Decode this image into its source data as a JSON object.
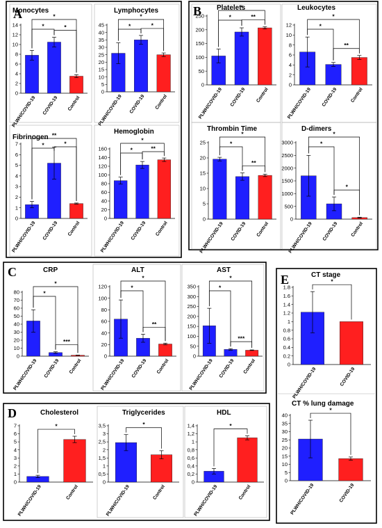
{
  "panels": [
    {
      "letter": "A",
      "rect": [
        9,
        2,
        252,
        368
      ]
    },
    {
      "letter": "B",
      "rect": [
        272,
        2,
        272,
        357
      ]
    },
    {
      "letter": "C",
      "rect": [
        5,
        377,
        378,
        188
      ]
    },
    {
      "letter": "D",
      "rect": [
        5,
        580,
        383,
        168
      ]
    },
    {
      "letter": "E",
      "rect": [
        398,
        386,
        144,
        366
      ]
    }
  ],
  "chart_data": [
    {
      "type": "bar",
      "title": "Monocytes",
      "categories": [
        "PLWH/COVID-19",
        "COVID-19",
        "Control"
      ],
      "values": [
        7.8,
        10.5,
        3.5
      ],
      "errors": [
        1.0,
        1.0,
        0.3
      ],
      "colors": [
        "#1f1fff",
        "#1f1fff",
        "#ff1f1f"
      ],
      "ylim": [
        0,
        14
      ],
      "yticks": [
        "0",
        "2",
        "4",
        "6",
        "8",
        "10",
        "12",
        "14"
      ],
      "sig": [
        {
          "from": 0,
          "to": 1,
          "label": "*"
        },
        {
          "from": 1,
          "to": 2,
          "label": "*"
        },
        {
          "from": 0,
          "to": 2,
          "label": "*"
        }
      ]
    },
    {
      "type": "bar",
      "title": "Lymphocytes",
      "categories": [
        "PLWH/COVID-19",
        "COVID-19",
        "Control"
      ],
      "values": [
        26,
        35,
        25
      ],
      "errors": [
        7,
        3,
        1.2
      ],
      "colors": [
        "#1f1fff",
        "#1f1fff",
        "#ff1f1f"
      ],
      "ylim": [
        0,
        45
      ],
      "yticks": [
        "0",
        "5",
        "10",
        "15",
        "20",
        "25",
        "30",
        "35",
        "40",
        "45"
      ],
      "sig": [
        {
          "from": 0,
          "to": 1,
          "label": "*"
        },
        {
          "from": 1,
          "to": 2,
          "label": "*"
        },
        {
          "from": 0,
          "to": 2,
          "label": "*"
        }
      ]
    },
    {
      "type": "bar",
      "title": "Fibrinogen",
      "categories": [
        "PLWH/COVID-19",
        "COVID-19",
        "Control"
      ],
      "values": [
        1.3,
        5.2,
        1.4
      ],
      "errors": [
        0.3,
        1.5,
        0.05
      ],
      "colors": [
        "#1f1fff",
        "#1f1fff",
        "#ff1f1f"
      ],
      "ylim": [
        0,
        7
      ],
      "yticks": [
        "0",
        "1",
        "2",
        "3",
        "4",
        "5",
        "6",
        "7"
      ],
      "sig": [
        {
          "from": 0,
          "to": 1,
          "label": "*"
        },
        {
          "from": 1,
          "to": 2,
          "label": "*"
        },
        {
          "from": 0,
          "to": 2,
          "label": "**"
        }
      ]
    },
    {
      "type": "bar",
      "title": "Hemoglobin",
      "categories": [
        "PLWH/COVID-19",
        "COVID-19",
        "Control"
      ],
      "values": [
        87,
        123,
        135
      ],
      "errors": [
        8,
        8,
        4
      ],
      "colors": [
        "#1f1fff",
        "#1f1fff",
        "#ff1f1f"
      ],
      "ylim": [
        0,
        160
      ],
      "yticks": [
        "0",
        "20",
        "40",
        "60",
        "80",
        "100",
        "120",
        "140",
        "160"
      ],
      "sig": [
        {
          "from": 0,
          "to": 1,
          "label": "*"
        },
        {
          "from": 1,
          "to": 2,
          "label": "**"
        },
        {
          "from": 0,
          "to": 2,
          "label": "*"
        }
      ]
    },
    {
      "type": "bar",
      "title": "Platelets",
      "categories": [
        "PLWH/COVID-19",
        "COVID-19",
        "Control"
      ],
      "values": [
        105,
        192,
        207
      ],
      "errors": [
        25,
        15,
        4
      ],
      "colors": [
        "#1f1fff",
        "#1f1fff",
        "#ff1f1f"
      ],
      "ylim": [
        0,
        250
      ],
      "yticks": [
        "0",
        "50",
        "100",
        "150",
        "200",
        "250"
      ],
      "sig": [
        {
          "from": 0,
          "to": 1,
          "label": "*"
        },
        {
          "from": 1,
          "to": 2,
          "label": "**"
        },
        {
          "from": 0,
          "to": 2,
          "label": "*"
        }
      ]
    },
    {
      "type": "bar",
      "title": "Leukocytes",
      "categories": [
        "PLWH/COVID-19",
        "COVID-19",
        "Control"
      ],
      "values": [
        6.6,
        4.1,
        5.5
      ],
      "errors": [
        3.0,
        0.4,
        0.4
      ],
      "colors": [
        "#1f1fff",
        "#1f1fff",
        "#ff1f1f"
      ],
      "ylim": [
        0,
        12
      ],
      "yticks": [
        "0",
        "2",
        "4",
        "6",
        "8",
        "10",
        "12"
      ],
      "sig": [
        {
          "from": 0,
          "to": 1,
          "label": "*"
        },
        {
          "from": 1,
          "to": 2,
          "label": "**"
        },
        {
          "from": 0,
          "to": 2,
          "label": "*"
        }
      ]
    },
    {
      "type": "bar",
      "title": "Thrombin Time",
      "categories": [
        "PLWH/COVID-19",
        "COVID-19",
        "Control"
      ],
      "values": [
        19.6,
        13.9,
        14.3
      ],
      "errors": [
        0.6,
        1.2,
        0.4
      ],
      "colors": [
        "#1f1fff",
        "#1f1fff",
        "#ff1f1f"
      ],
      "ylim": [
        0,
        25
      ],
      "yticks": [
        "0",
        "5",
        "10",
        "15",
        "20",
        "25"
      ],
      "sig": [
        {
          "from": 0,
          "to": 1,
          "label": "*"
        },
        {
          "from": 1,
          "to": 2,
          "label": "**"
        },
        {
          "from": 0,
          "to": 2,
          "label": "*"
        }
      ]
    },
    {
      "type": "bar",
      "title": "D-dimers",
      "categories": [
        "PLWH/COVID-19",
        "COVID-19",
        "Control"
      ],
      "values": [
        1700,
        600,
        60
      ],
      "errors": [
        800,
        270,
        15
      ],
      "colors": [
        "#1f1fff",
        "#1f1fff",
        "#ff1f1f"
      ],
      "ylim": [
        0,
        3000
      ],
      "yticks": [
        "0",
        "500",
        "1000",
        "1500",
        "2000",
        "2500",
        "3000"
      ],
      "sig": [
        {
          "from": 0,
          "to": 1,
          "label": "*"
        },
        {
          "from": 1,
          "to": 2,
          "label": "*"
        },
        {
          "from": 0,
          "to": 2,
          "label": "*"
        }
      ]
    },
    {
      "type": "bar",
      "title": "CRP",
      "categories": [
        "PLWH/COVID-19",
        "COVID-19",
        "Control"
      ],
      "values": [
        44,
        4.5,
        1.2
      ],
      "errors": [
        14,
        1.0,
        0.2
      ],
      "colors": [
        "#1f1fff",
        "#1f1fff",
        "#ff1f1f"
      ],
      "ylim": [
        0,
        80
      ],
      "yticks": [
        "0",
        "10",
        "20",
        "30",
        "40",
        "50",
        "60",
        "70",
        "80"
      ],
      "sig": [
        {
          "from": 0,
          "to": 1,
          "label": "*"
        },
        {
          "from": 1,
          "to": 2,
          "label": "***"
        },
        {
          "from": 0,
          "to": 2,
          "label": "*"
        }
      ]
    },
    {
      "type": "bar",
      "title": "ALT",
      "categories": [
        "PLWH/COVID-19",
        "COVID-19",
        "Control"
      ],
      "values": [
        64,
        31,
        21
      ],
      "errors": [
        33,
        7,
        1.5
      ],
      "colors": [
        "#1f1fff",
        "#1f1fff",
        "#ff1f1f"
      ],
      "ylim": [
        0,
        120
      ],
      "yticks": [
        "0",
        "20",
        "40",
        "60",
        "80",
        "100",
        "120"
      ],
      "sig": [
        {
          "from": 0,
          "to": 1,
          "label": "*"
        },
        {
          "from": 1,
          "to": 2,
          "label": "**"
        },
        {
          "from": 0,
          "to": 2,
          "label": "*"
        }
      ]
    },
    {
      "type": "bar",
      "title": "AST",
      "categories": [
        "PLWH/COVID-19",
        "COVID-19",
        "Control"
      ],
      "values": [
        153,
        34,
        30
      ],
      "errors": [
        88,
        4,
        1.5
      ],
      "colors": [
        "#1f1fff",
        "#1f1fff",
        "#ff1f1f"
      ],
      "ylim": [
        0,
        350
      ],
      "yticks": [
        "0",
        "50",
        "100",
        "150",
        "200",
        "250",
        "300",
        "350"
      ],
      "sig": [
        {
          "from": 0,
          "to": 1,
          "label": "*"
        },
        {
          "from": 1,
          "to": 2,
          "label": "***"
        },
        {
          "from": 0,
          "to": 2,
          "label": "*"
        }
      ]
    },
    {
      "type": "bar",
      "title": "Cholesterol",
      "categories": [
        "PLWH/COVID-19",
        "Control"
      ],
      "values": [
        0.7,
        5.3
      ],
      "errors": [
        0.15,
        0.4
      ],
      "colors": [
        "#1f1fff",
        "#ff1f1f"
      ],
      "ylim": [
        0,
        7
      ],
      "yticks": [
        "0",
        "1",
        "2",
        "3",
        "4",
        "5",
        "6",
        "7"
      ],
      "sig": [
        {
          "from": 0,
          "to": 1,
          "label": "*"
        }
      ]
    },
    {
      "type": "bar",
      "title": "Triglycerides",
      "categories": [
        "PLWH/COVID-19",
        "Control"
      ],
      "values": [
        2.45,
        1.7
      ],
      "errors": [
        0.5,
        0.25
      ],
      "colors": [
        "#1f1fff",
        "#ff1f1f"
      ],
      "ylim": [
        0,
        3.5
      ],
      "yticks": [
        "0",
        "0,5",
        "1",
        "1,5",
        "2",
        "2,5",
        "3",
        "3,5"
      ],
      "sig": [
        {
          "from": 0,
          "to": 1,
          "label": "*"
        }
      ]
    },
    {
      "type": "bar",
      "title": "HDL",
      "categories": [
        "PLWH/COVID-19",
        "Control"
      ],
      "values": [
        0.27,
        1.1
      ],
      "errors": [
        0.07,
        0.05
      ],
      "colors": [
        "#1f1fff",
        "#ff1f1f"
      ],
      "ylim": [
        0,
        1.4
      ],
      "yticks": [
        "0",
        "0,2",
        "0,4",
        "0,6",
        "0,8",
        "1",
        "1,2",
        "1,4"
      ],
      "sig": [
        {
          "from": 0,
          "to": 1,
          "label": "*"
        }
      ]
    },
    {
      "type": "bar",
      "title": "CT stage",
      "categories": [
        "PLWH/COVID-19",
        "COVID-19"
      ],
      "values": [
        1.22,
        1.0
      ],
      "errors": [
        0.48,
        0.0
      ],
      "colors": [
        "#1f1fff",
        "#ff1f1f"
      ],
      "ylim": [
        0,
        1.8
      ],
      "yticks": [
        "0",
        "0.2",
        "0.4",
        "0.6",
        "0.8",
        "1",
        "1.2",
        "1.4",
        "1.6",
        "1.8"
      ],
      "sig": [
        {
          "from": 0,
          "to": 1,
          "label": "*"
        }
      ]
    },
    {
      "type": "bar",
      "title": "CT % lung damage",
      "categories": [
        "PLWH/COVID-19",
        "COVID-19"
      ],
      "values": [
        25.5,
        13.5
      ],
      "errors": [
        11.5,
        1.0
      ],
      "colors": [
        "#1f1fff",
        "#ff1f1f"
      ],
      "ylim": [
        0,
        40
      ],
      "yticks": [
        "0",
        "5",
        "10",
        "15",
        "20",
        "25",
        "30",
        "35",
        "40"
      ],
      "sig": [
        {
          "from": 0,
          "to": 1,
          "label": "*"
        }
      ]
    }
  ]
}
